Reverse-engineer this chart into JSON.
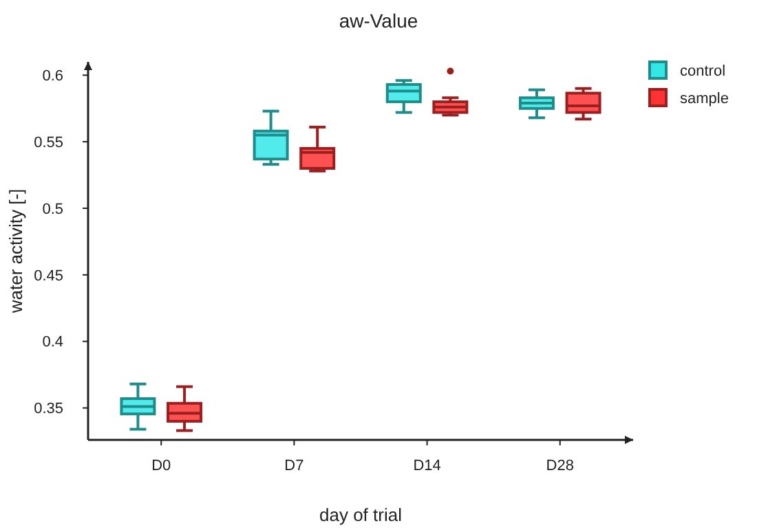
{
  "chart_data": {
    "type": "box",
    "title": "aw-Value",
    "xlabel": "day of trial",
    "ylabel": "water activity [-]",
    "categories": [
      "D0",
      "D7",
      "D14",
      "D28"
    ],
    "ylim": [
      0.326,
      0.61
    ],
    "yticks": [
      0.35,
      0.4,
      0.45,
      0.5,
      0.55,
      0.6
    ],
    "grid": false,
    "legend": "top right",
    "series": [
      {
        "name": "control",
        "color": "#1f8c8c",
        "boxes": [
          {
            "low": 0.334,
            "q1": 0.3455,
            "median": 0.351,
            "q3": 0.357,
            "high": 0.368
          },
          {
            "low": 0.533,
            "q1": 0.537,
            "median": 0.555,
            "q3": 0.558,
            "high": 0.573
          },
          {
            "low": 0.572,
            "q1": 0.58,
            "median": 0.588,
            "q3": 0.593,
            "high": 0.596
          },
          {
            "low": 0.568,
            "q1": 0.575,
            "median": 0.579,
            "q3": 0.583,
            "high": 0.589
          }
        ]
      },
      {
        "name": "sample",
        "color": "#9b1f1f",
        "boxes": [
          {
            "low": 0.333,
            "q1": 0.34,
            "median": 0.346,
            "q3": 0.3535,
            "high": 0.366
          },
          {
            "low": 0.528,
            "q1": 0.53,
            "median": 0.542,
            "q3": 0.545,
            "high": 0.561
          },
          {
            "low": 0.57,
            "q1": 0.572,
            "median": 0.576,
            "q3": 0.58,
            "high": 0.583,
            "outliers": [
              0.603
            ]
          },
          {
            "low": 0.567,
            "q1": 0.572,
            "median": 0.577,
            "q3": 0.5865,
            "high": 0.59
          }
        ]
      }
    ]
  }
}
